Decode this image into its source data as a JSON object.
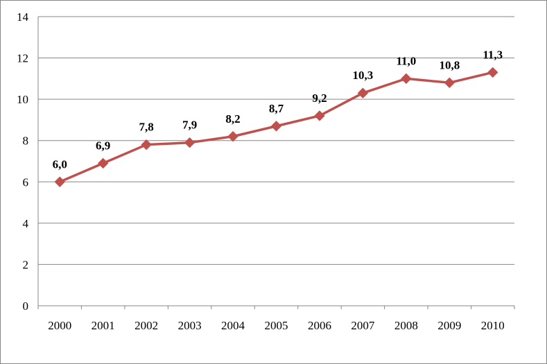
{
  "chart_data": {
    "type": "line",
    "title": "",
    "xlabel": "",
    "ylabel": "",
    "categories": [
      "2000",
      "2001",
      "2002",
      "2003",
      "2004",
      "2005",
      "2006",
      "2007",
      "2008",
      "2009",
      "2010"
    ],
    "series": [
      {
        "values": [
          6.0,
          6.9,
          7.8,
          7.9,
          8.2,
          8.7,
          9.2,
          10.3,
          11.0,
          10.8,
          11.3
        ],
        "data_labels": [
          "6,0",
          "6,9",
          "7,8",
          "7,9",
          "8,2",
          "8,7",
          "9,2",
          "10,3",
          "11,0",
          "10,8",
          "11,3"
        ],
        "color": "#c0504d",
        "marker": "diamond"
      }
    ],
    "ylim": [
      0,
      14
    ],
    "y_ticks": [
      "0",
      "2",
      "4",
      "6",
      "8",
      "10",
      "12",
      "14"
    ],
    "grid": true,
    "legend": "none",
    "gridline_color": "#868686"
  }
}
